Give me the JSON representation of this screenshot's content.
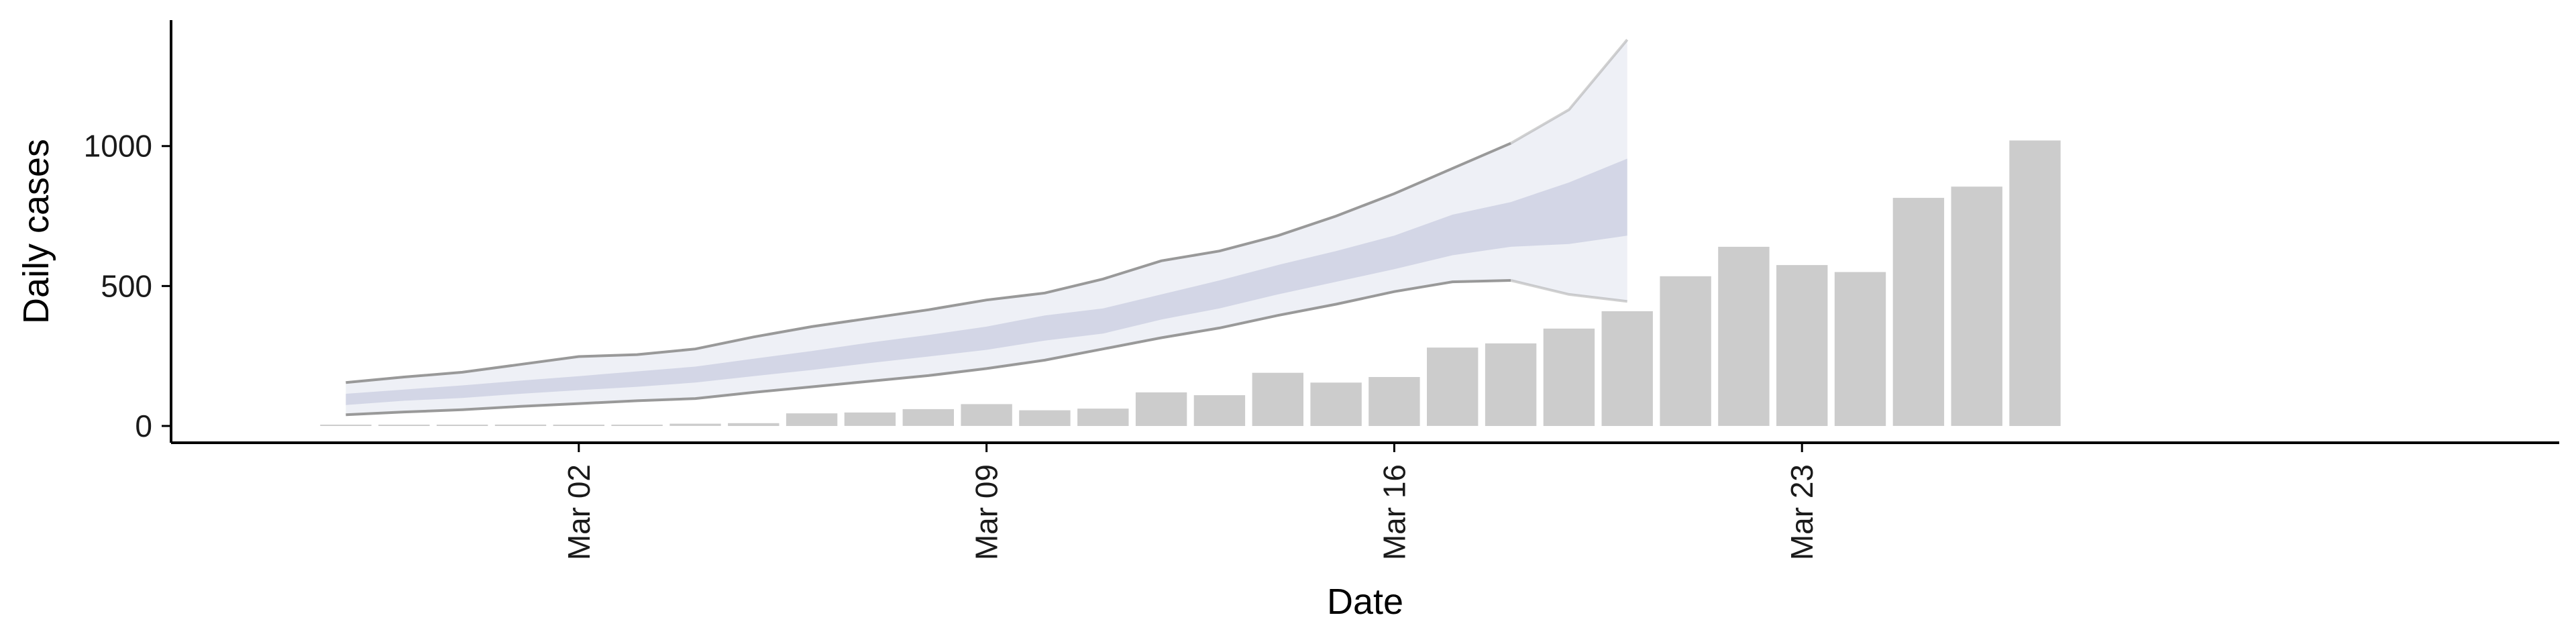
{
  "chart_data": {
    "type": "bar",
    "title": "",
    "xlabel": "Date",
    "ylabel": "Daily cases",
    "x_ticks": [
      {
        "date": "Mar 02",
        "label": "Mar 02"
      },
      {
        "date": "Mar 09",
        "label": "Mar 09"
      },
      {
        "date": "Mar 16",
        "label": "Mar 16"
      },
      {
        "date": "Mar 23",
        "label": "Mar 23"
      }
    ],
    "y_ticks": [
      0,
      500,
      1000
    ],
    "xlim": [
      "Feb 24",
      "Apr 05"
    ],
    "ylim": [
      -60,
      1450
    ],
    "grid": false,
    "colors": {
      "bars": "#cccccc",
      "ribbon_outer": "#eceef5",
      "ribbon_inner": "#c9cde0",
      "bound_line": "#999999"
    },
    "bars": {
      "name": "",
      "points": [
        {
          "date": "Feb 27",
          "value": 2
        },
        {
          "date": "Feb 28",
          "value": 1
        },
        {
          "date": "Feb 29",
          "value": 3
        },
        {
          "date": "Mar 01",
          "value": 5
        },
        {
          "date": "Mar 02",
          "value": 4
        },
        {
          "date": "Mar 03",
          "value": 2
        },
        {
          "date": "Mar 04",
          "value": 8
        },
        {
          "date": "Mar 05",
          "value": 10
        },
        {
          "date": "Mar 06",
          "value": 45
        },
        {
          "date": "Mar 07",
          "value": 48
        },
        {
          "date": "Mar 08",
          "value": 60
        },
        {
          "date": "Mar 09",
          "value": 78
        },
        {
          "date": "Mar 10",
          "value": 56
        },
        {
          "date": "Mar 11",
          "value": 62
        },
        {
          "date": "Mar 12",
          "value": 120
        },
        {
          "date": "Mar 13",
          "value": 110
        },
        {
          "date": "Mar 14",
          "value": 190
        },
        {
          "date": "Mar 15",
          "value": 155
        },
        {
          "date": "Mar 16",
          "value": 175
        },
        {
          "date": "Mar 17",
          "value": 280
        },
        {
          "date": "Mar 18",
          "value": 295
        },
        {
          "date": "Mar 19",
          "value": 348
        },
        {
          "date": "Mar 20",
          "value": 410
        },
        {
          "date": "Mar 21",
          "value": 535
        },
        {
          "date": "Mar 22",
          "value": 640
        },
        {
          "date": "Mar 23",
          "value": 575
        },
        {
          "date": "Mar 24",
          "value": 550
        },
        {
          "date": "Mar 25",
          "value": 815
        },
        {
          "date": "Mar 26",
          "value": 855
        },
        {
          "date": "Mar 27",
          "value": 1020
        }
      ]
    },
    "prediction_band": {
      "name": "",
      "points": [
        {
          "date": "Feb 27",
          "lower": 40,
          "inner_lower": 75,
          "inner_upper": 115,
          "upper": 155
        },
        {
          "date": "Feb 28",
          "lower": 50,
          "inner_lower": 90,
          "inner_upper": 130,
          "upper": 175
        },
        {
          "date": "Feb 29",
          "lower": 58,
          "inner_lower": 100,
          "inner_upper": 145,
          "upper": 192
        },
        {
          "date": "Mar 01",
          "lower": 70,
          "inner_lower": 115,
          "inner_upper": 162,
          "upper": 220
        },
        {
          "date": "Mar 02",
          "lower": 80,
          "inner_lower": 128,
          "inner_upper": 178,
          "upper": 248
        },
        {
          "date": "Mar 03",
          "lower": 90,
          "inner_lower": 140,
          "inner_upper": 195,
          "upper": 255
        },
        {
          "date": "Mar 04",
          "lower": 98,
          "inner_lower": 155,
          "inner_upper": 212,
          "upper": 275
        },
        {
          "date": "Mar 05",
          "lower": 120,
          "inner_lower": 178,
          "inner_upper": 240,
          "upper": 318
        },
        {
          "date": "Mar 06",
          "lower": 140,
          "inner_lower": 200,
          "inner_upper": 268,
          "upper": 355
        },
        {
          "date": "Mar 07",
          "lower": 160,
          "inner_lower": 225,
          "inner_upper": 298,
          "upper": 385
        },
        {
          "date": "Mar 08",
          "lower": 180,
          "inner_lower": 248,
          "inner_upper": 325,
          "upper": 415
        },
        {
          "date": "Mar 09",
          "lower": 205,
          "inner_lower": 272,
          "inner_upper": 355,
          "upper": 450
        },
        {
          "date": "Mar 10",
          "lower": 235,
          "inner_lower": 305,
          "inner_upper": 395,
          "upper": 475
        },
        {
          "date": "Mar 11",
          "lower": 275,
          "inner_lower": 330,
          "inner_upper": 420,
          "upper": 525
        },
        {
          "date": "Mar 12",
          "lower": 315,
          "inner_lower": 380,
          "inner_upper": 470,
          "upper": 590
        },
        {
          "date": "Mar 13",
          "lower": 350,
          "inner_lower": 420,
          "inner_upper": 520,
          "upper": 625
        },
        {
          "date": "Mar 14",
          "lower": 395,
          "inner_lower": 470,
          "inner_upper": 575,
          "upper": 680
        },
        {
          "date": "Mar 15",
          "lower": 435,
          "inner_lower": 515,
          "inner_upper": 625,
          "upper": 750
        },
        {
          "date": "Mar 16",
          "lower": 480,
          "inner_lower": 560,
          "inner_upper": 680,
          "upper": 830
        },
        {
          "date": "Mar 17",
          "lower": 515,
          "inner_lower": 610,
          "inner_upper": 755,
          "upper": 920
        },
        {
          "date": "Mar 18",
          "lower": 520,
          "inner_lower": 640,
          "inner_upper": 800,
          "upper": 1010
        },
        {
          "date": "Mar 19",
          "lower": 470,
          "inner_lower": 650,
          "inner_upper": 870,
          "upper": 1130
        },
        {
          "date": "Mar 20",
          "lower": 445,
          "inner_lower": 680,
          "inner_upper": 955,
          "upper": 1380
        }
      ]
    }
  }
}
